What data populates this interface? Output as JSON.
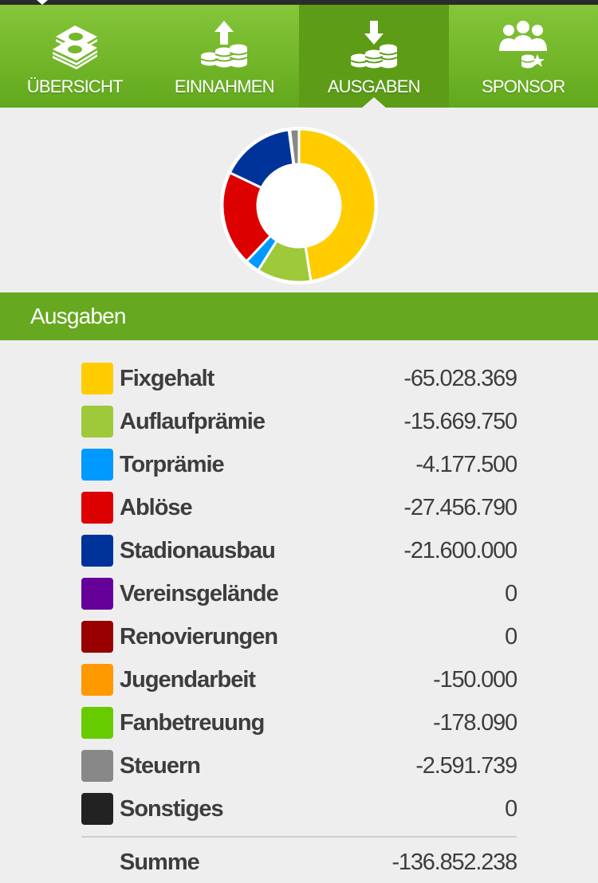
{
  "tabs": [
    {
      "label": "ÜBERSICHT",
      "icon": "money-stack-icon",
      "active": false
    },
    {
      "label": "EINNAHMEN",
      "icon": "coins-up-arrow-icon",
      "active": false
    },
    {
      "label": "AUSGABEN",
      "icon": "coins-down-arrow-icon",
      "active": true
    },
    {
      "label": "SPONSOR",
      "icon": "sponsor-people-icon",
      "active": false
    }
  ],
  "section": {
    "title": "Ausgaben"
  },
  "items": [
    {
      "name": "Fixgehalt",
      "value": "-65.028.369",
      "color": "#ffcc00"
    },
    {
      "name": "Auflaufprämie",
      "value": "-15.669.750",
      "color": "#9dc93a"
    },
    {
      "name": "Torprämie",
      "value": "-4.177.500",
      "color": "#0099ff"
    },
    {
      "name": "Ablöse",
      "value": "-27.456.790",
      "color": "#dd0000"
    },
    {
      "name": "Stadionausbau",
      "value": "-21.600.000",
      "color": "#003399"
    },
    {
      "name": "Vereinsgelände",
      "value": "0",
      "color": "#660099"
    },
    {
      "name": "Renovierungen",
      "value": "0",
      "color": "#990000"
    },
    {
      "name": "Jugendarbeit",
      "value": "-150.000",
      "color": "#ff9900"
    },
    {
      "name": "Fanbetreuung",
      "value": "-178.090",
      "color": "#66cc00"
    },
    {
      "name": "Steuern",
      "value": "-2.591.739",
      "color": "#888888"
    },
    {
      "name": "Sonstiges",
      "value": "0",
      "color": "#222222"
    }
  ],
  "sum": {
    "label": "Summe",
    "value": "-136.852.238"
  },
  "chart_data": {
    "type": "pie",
    "categories": [
      "Fixgehalt",
      "Auflaufprämie",
      "Torprämie",
      "Ablöse",
      "Stadionausbau",
      "Vereinsgelände",
      "Renovierungen",
      "Jugendarbeit",
      "Fanbetreuung",
      "Steuern",
      "Sonstiges"
    ],
    "values": [
      65028369,
      15669750,
      4177500,
      27456790,
      21600000,
      0,
      0,
      150000,
      178090,
      2591739,
      0
    ],
    "colors": [
      "#ffcc00",
      "#9dc93a",
      "#0099ff",
      "#dd0000",
      "#003399",
      "#660099",
      "#990000",
      "#ff9900",
      "#66cc00",
      "#888888",
      "#222222"
    ]
  }
}
